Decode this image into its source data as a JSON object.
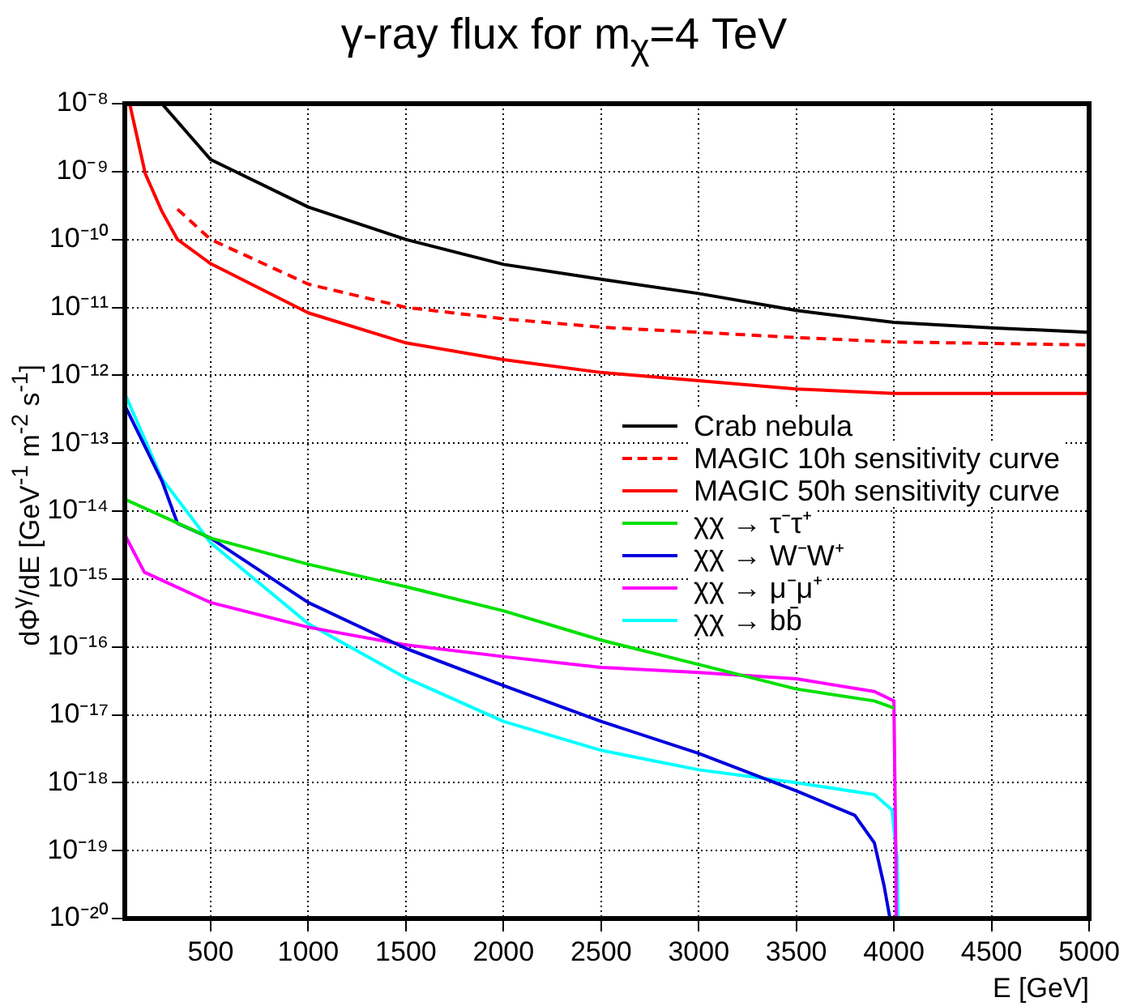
{
  "chart_data": {
    "type": "line",
    "title": "γ-ray flux for m$_{χ}$=4 TeV",
    "xlabel": "E [GeV]",
    "ylabel": "dΦ$^{γ}$/dE [GeV$^{-1}$ m$^{-2}$ s$^{-1}$]",
    "xlim": [
      60,
      5000
    ],
    "xticks": [
      500,
      1000,
      1500,
      2000,
      2500,
      3000,
      3500,
      4000,
      4500,
      5000
    ],
    "ylim": [
      1e-20,
      1e-08
    ],
    "log": "y",
    "yticks": [
      {
        "value": 1e-08,
        "label": "10⁻⁸"
      },
      {
        "value": 1e-09,
        "label": "10⁻⁹"
      },
      {
        "value": 1e-10,
        "label": "10⁻¹⁰"
      },
      {
        "value": 1e-11,
        "label": "10⁻¹¹"
      },
      {
        "value": 1e-12,
        "label": "10⁻¹²"
      },
      {
        "value": 1e-13,
        "label": "10⁻¹³"
      },
      {
        "value": 1e-14,
        "label": "10⁻¹⁴"
      },
      {
        "value": 1e-15,
        "label": "10⁻¹⁵"
      },
      {
        "value": 1e-16,
        "label": "10⁻¹⁶"
      },
      {
        "value": 1e-17,
        "label": "10⁻¹⁷"
      },
      {
        "value": 1e-18,
        "label": "10⁻¹⁸"
      },
      {
        "value": 1e-19,
        "label": "10⁻¹⁹"
      },
      {
        "value": 1e-20,
        "label": "10⁻²⁰"
      }
    ],
    "grid": true,
    "legend": "right",
    "marker": "none",
    "series": [
      {
        "name": "Crab nebula",
        "color": "#000000",
        "x": [
          250,
          500,
          1000,
          1500,
          2000,
          2500,
          3000,
          3500,
          4000,
          4500,
          5000
        ],
        "values": [
          1e-08,
          1.5e-09,
          3e-10,
          1e-10,
          4.3e-11,
          2.6e-11,
          1.6e-11,
          9e-12,
          6e-12,
          5e-12,
          4.3e-12
        ]
      },
      {
        "name": "MAGIC 10h sensitivity curve",
        "color": "#ff0000",
        "line_style": "dashed",
        "x": [
          330,
          500,
          1000,
          1500,
          2000,
          2500,
          3000,
          3500,
          4000,
          5000
        ],
        "values": [
          2.8e-10,
          1e-10,
          2.2e-11,
          1e-11,
          6.8e-12,
          5.1e-12,
          4.3e-12,
          3.6e-12,
          3.1e-12,
          2.8e-12
        ]
      },
      {
        "name": "MAGIC 50h sensitivity curve",
        "color": "#ff0000",
        "x": [
          85,
          165,
          250,
          330,
          500,
          1000,
          1500,
          2000,
          2500,
          3000,
          3500,
          4000,
          5000
        ],
        "values": [
          1e-08,
          9.3e-10,
          2.6e-10,
          1e-10,
          4.4e-11,
          8.3e-12,
          3e-12,
          1.7e-12,
          1.1e-12,
          8.3e-13,
          6.3e-13,
          5.4e-13,
          5.4e-13
        ]
      },
      {
        "name": "χχ → τ⁻τ⁺",
        "color": "#00e000",
        "x": [
          60,
          500,
          1000,
          1500,
          2000,
          2500,
          3000,
          3500,
          3900,
          4000
        ],
        "values": [
          1.5e-14,
          4e-15,
          1.65e-15,
          7.7e-16,
          3.4e-16,
          1.26e-16,
          5.5e-17,
          2.4e-17,
          1.6e-17,
          1.26e-17
        ]
      },
      {
        "name": "χχ → W⁻W⁺",
        "color": "#0000dd",
        "x": [
          60,
          250,
          330,
          500,
          1000,
          1500,
          2000,
          2500,
          3000,
          3500,
          3800,
          3900,
          3950,
          3980
        ],
        "values": [
          3.6e-13,
          2.8e-14,
          6.6e-15,
          4e-15,
          4.5e-16,
          9.5e-17,
          2.7e-17,
          8e-18,
          2.7e-18,
          7.6e-19,
          3.3e-19,
          1.3e-19,
          3e-20,
          1e-20
        ]
      },
      {
        "name": "χχ → μ⁻μ⁺",
        "color": "#ff00ff",
        "x": [
          60,
          160,
          500,
          1000,
          1500,
          2000,
          2500,
          3000,
          3500,
          3900,
          4000,
          4010,
          4012
        ],
        "values": [
          4.5e-15,
          1.26e-15,
          4.5e-16,
          1.95e-16,
          1.07e-16,
          7.2e-17,
          5e-17,
          4.2e-17,
          3.4e-17,
          2.2e-17,
          1.6e-17,
          8e-20,
          1e-20
        ]
      },
      {
        "name": "χχ → bb̄",
        "color": "#00ffff",
        "x": [
          60,
          250,
          500,
          1000,
          1500,
          2000,
          2500,
          3000,
          3500,
          3900,
          3990,
          4016,
          4022
        ],
        "values": [
          5.4e-13,
          3e-14,
          3.4e-15,
          2.2e-16,
          3.5e-17,
          8e-18,
          3e-18,
          1.55e-18,
          1e-18,
          6.7e-19,
          4e-19,
          8e-20,
          1e-20
        ]
      }
    ]
  }
}
